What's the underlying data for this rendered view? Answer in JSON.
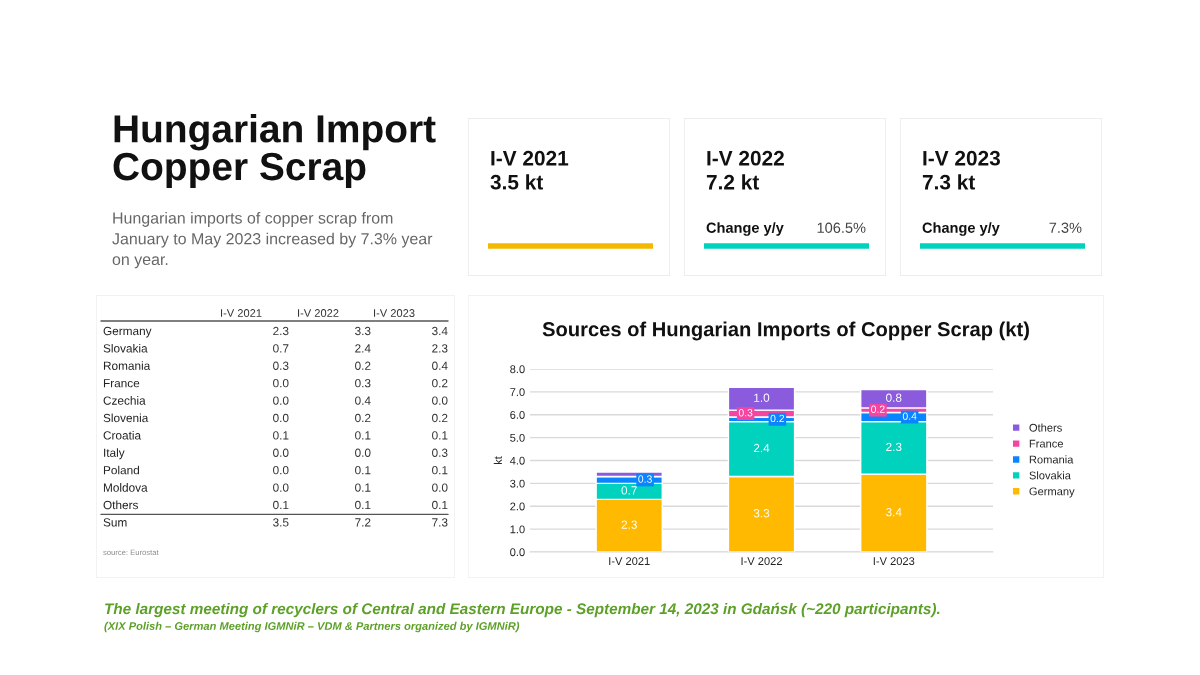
{
  "chart_data": [
    {
      "type": "other",
      "title": "Hungarian Import Copper Scrap",
      "subtitle": "Hungarian imports of copper scrap from January to May 2023 increased by 7.3% year on year.",
      "annotations": [
        "The largest meeting of recyclers of Central and Eastern Europe - September 14, 2023 in Gdańsk (~220 participants).",
        "(XIX Polish – German Meeting IGMNiR – VDM & Partners organized by IGMNiR)"
      ]
    },
    {
      "type": "other",
      "title": "I-V 2021",
      "subtitle": "3.5 kt",
      "color": "#f5b800"
    },
    {
      "type": "other",
      "title": "I-V 2022",
      "subtitle": "7.2 kt",
      "color": "#00d2be",
      "annotations": [
        "Change y/y",
        "106.5%"
      ]
    },
    {
      "type": "other",
      "title": "I-V 2023",
      "subtitle": "7.3 kt",
      "color": "#00d2be",
      "annotations": [
        "Change y/y",
        "7.3%"
      ]
    },
    {
      "type": "other",
      "categories": [
        "Germany",
        "Slovakia",
        "Romania",
        "France",
        "Czechia",
        "Slovenia",
        "Croatia",
        "Italy",
        "Poland",
        "Moldova",
        "Others",
        "Sum"
      ],
      "series": [
        {
          "name": "I-V 2021",
          "values": [
            2.3,
            0.7,
            0.3,
            0.0,
            0.0,
            0.0,
            0.1,
            0.0,
            0.0,
            0.0,
            0.1,
            3.5
          ],
          "value_labels": [
            "2.3",
            "0.7",
            "0.3",
            "0.0",
            "0.0",
            "0.0",
            "0.1",
            "0.0",
            "0.0",
            "0.0",
            "0.1",
            "3.5"
          ]
        },
        {
          "name": "I-V 2022",
          "values": [
            3.3,
            2.4,
            0.2,
            0.3,
            0.4,
            0.2,
            0.1,
            0.0,
            0.1,
            0.1,
            0.1,
            7.2
          ],
          "value_labels": [
            "3.3",
            "2.4",
            "0.2",
            "0.3",
            "0.4",
            "0.2",
            "0.1",
            "0.0",
            "0.1",
            "0.1",
            "0.1",
            "7.2"
          ]
        },
        {
          "name": "I-V 2023",
          "values": [
            3.4,
            2.3,
            0.4,
            0.2,
            0.0,
            0.2,
            0.1,
            0.3,
            0.1,
            0.0,
            0.1,
            7.3
          ],
          "value_labels": [
            "3.4",
            "2.3",
            "0.4",
            "0.2",
            "0.0",
            "0.2",
            "0.1",
            "0.3",
            "0.1",
            "0.0",
            "0.1",
            "7.3"
          ]
        }
      ],
      "annotations": [
        "source: Eurostat"
      ]
    },
    {
      "type": "bar",
      "title": "Sources of Hungarian Imports of Copper Scrap (kt)",
      "ylabel": "kt",
      "stacked": true,
      "categories": [
        "I-V 2021",
        "I-V 2022",
        "I-V 2023"
      ],
      "series": [
        {
          "name": "Germany",
          "color": "#ffb900",
          "values": [
            2.3,
            3.3,
            3.4
          ],
          "value_labels": [
            "2.3",
            "3.3",
            "3.4"
          ]
        },
        {
          "name": "Slovakia",
          "color": "#00d2be",
          "values": [
            0.7,
            2.4,
            2.3
          ],
          "value_labels": [
            "0.7",
            "2.4",
            "2.3"
          ]
        },
        {
          "name": "Romania",
          "color": "#0a84ff",
          "values": [
            0.3,
            0.2,
            0.4
          ],
          "value_labels": [
            "0.3",
            "0.2",
            "0.4"
          ]
        },
        {
          "name": "France",
          "color": "#f545a0",
          "values": [
            0.0,
            0.3,
            0.2
          ],
          "value_labels": [
            null,
            "0.3",
            "0.2"
          ]
        },
        {
          "name": "Others",
          "color": "#8a5bdc",
          "values": [
            0.2,
            1.0,
            0.8
          ],
          "value_labels": [
            null,
            "1.0",
            "0.8"
          ]
        }
      ],
      "ylim": [
        0,
        8
      ],
      "yticks": [
        {
          "value": 0,
          "label": "0.0"
        },
        {
          "value": 1,
          "label": "1.0"
        },
        {
          "value": 2,
          "label": "2.0"
        },
        {
          "value": 3,
          "label": "3.0"
        },
        {
          "value": 4,
          "label": "4.0"
        },
        {
          "value": 5,
          "label": "5.0"
        },
        {
          "value": 6,
          "label": "6.0"
        },
        {
          "value": 7,
          "label": "7.0"
        },
        {
          "value": 8,
          "label": "8.0"
        }
      ],
      "grid": "y",
      "legend": "right"
    }
  ]
}
